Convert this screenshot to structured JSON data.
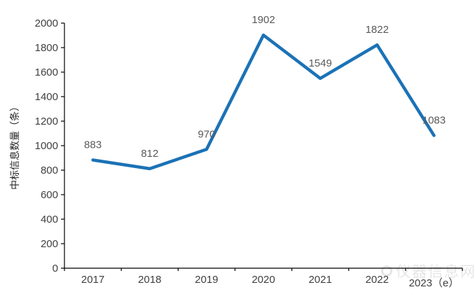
{
  "chart_data": {
    "type": "line",
    "title": "",
    "categories": [
      "2017",
      "2018",
      "2019",
      "2020",
      "2021",
      "2022",
      "2023（e）"
    ],
    "values": [
      883,
      812,
      970,
      1902,
      1549,
      1822,
      1083
    ],
    "data_labels": [
      "883",
      "812",
      "970",
      "1902",
      "1549",
      "1822",
      "1083"
    ],
    "xlabel": "",
    "ylabel": "中标信息数量（条）",
    "ylim": [
      0,
      2000
    ],
    "ytick_step": 200,
    "grid": false,
    "legend": "none",
    "line_color": "#1B72B6",
    "data_label_color": "#595959",
    "axis_color": "#000000",
    "tick_label_color": "#3F3F3F"
  },
  "watermark": {
    "text": "仪器信息网"
  }
}
